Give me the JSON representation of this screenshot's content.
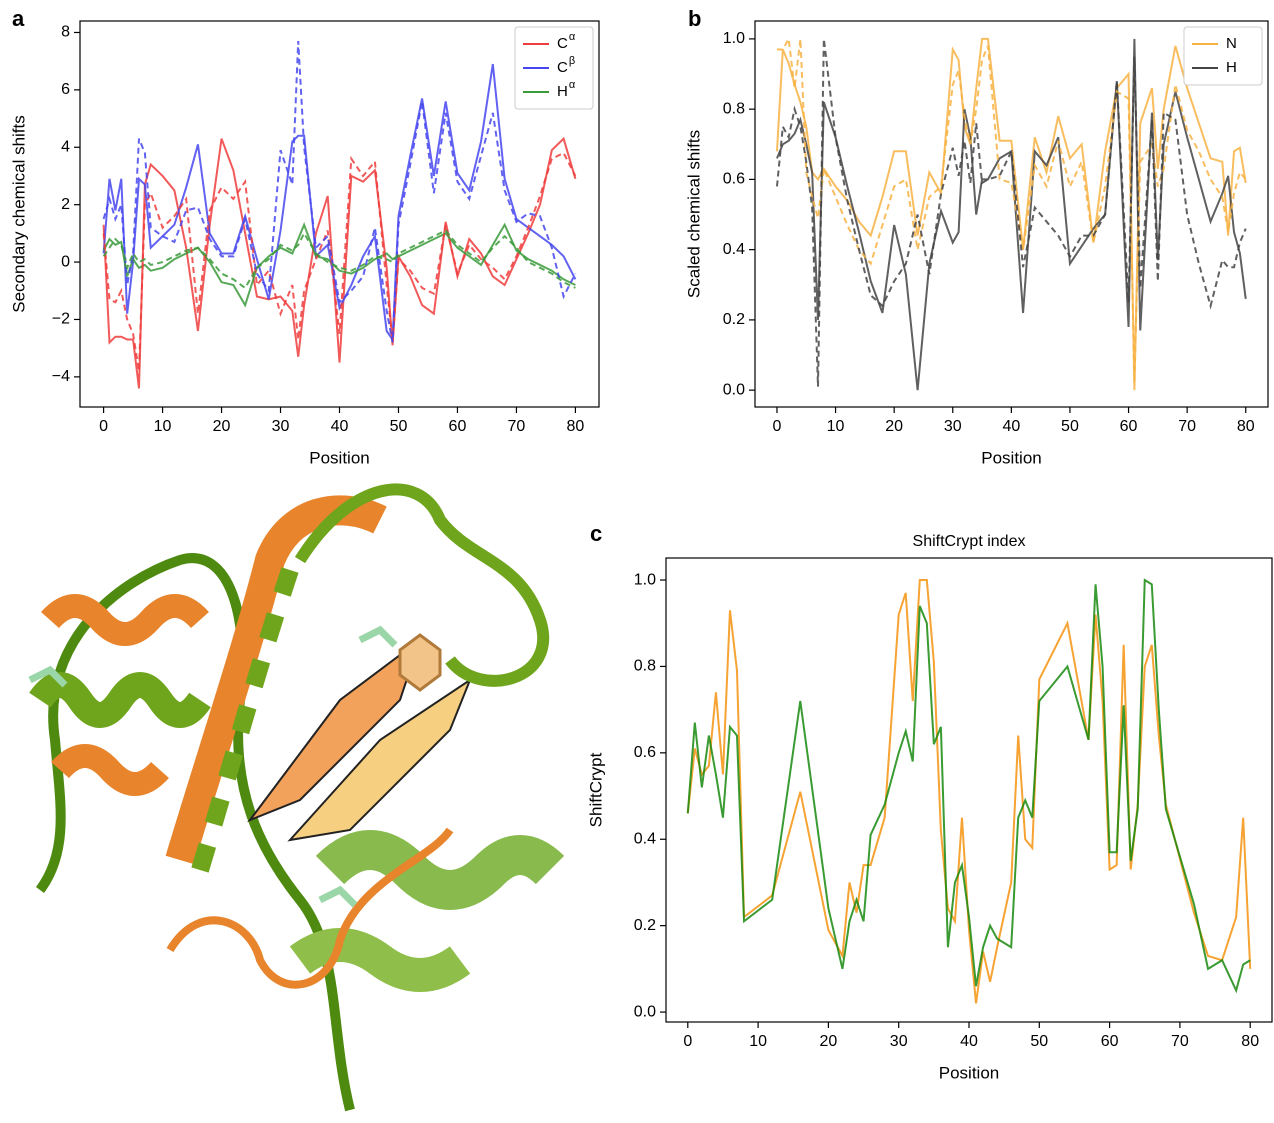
{
  "chart_data": [
    {
      "type": "line",
      "panel": "a",
      "xlabel": "Position",
      "ylabel": "Secondary chemical shifts",
      "legend": "upper right",
      "xlim": [
        -4,
        84
      ],
      "ylim": [
        -5.05,
        8.4
      ],
      "xticks": [
        0,
        10,
        20,
        30,
        40,
        50,
        60,
        70,
        80
      ],
      "yticks": [
        {
          "value": -4,
          "label": "−4"
        },
        {
          "value": -2,
          "label": "−2"
        },
        0,
        2,
        4,
        6,
        8
      ],
      "x": [
        0,
        1,
        2,
        3,
        4,
        5,
        6,
        7,
        8,
        10,
        12,
        14,
        16,
        18,
        20,
        22,
        24,
        26,
        28,
        30,
        32,
        33,
        34,
        36,
        38,
        40,
        42,
        44,
        46,
        48,
        49,
        50,
        52,
        54,
        56,
        58,
        60,
        62,
        64,
        66,
        68,
        70,
        72,
        74,
        76,
        78,
        80
      ],
      "series": [
        {
          "name": "C",
          "name_sup": "α",
          "color": "#f03c3c",
          "values": [
            1.3,
            -2.8,
            -2.6,
            -2.6,
            -2.7,
            -2.7,
            -4.4,
            2.7,
            3.4,
            3.0,
            2.5,
            0.5,
            -2.4,
            1.3,
            4.3,
            3.2,
            1.0,
            -1.2,
            -1.3,
            -1.2,
            -1.7,
            -3.3,
            -1.5,
            1.0,
            2.3,
            -3.5,
            3.0,
            2.8,
            3.2,
            -0.2,
            -2.9,
            0.2,
            -0.5,
            -1.5,
            -1.8,
            1.4,
            -0.5,
            0.8,
            0.3,
            -0.5,
            -0.8,
            0.1,
            1.0,
            2.0,
            3.9,
            4.3,
            2.9
          ]
        },
        {
          "name": "C",
          "name_sup": "β",
          "color": "#4646f0",
          "values": [
            0.3,
            2.9,
            1.8,
            2.9,
            -1.8,
            0,
            2.9,
            2.7,
            0.5,
            0.9,
            1.3,
            2.6,
            4.1,
            1.0,
            0.3,
            0.3,
            1.6,
            0.1,
            -1.3,
            1.1,
            4.2,
            4.4,
            4.4,
            0.2,
            0.6,
            -1.6,
            -0.8,
            0.2,
            0.9,
            -2.4,
            -2.7,
            1.6,
            3.7,
            5.7,
            3.0,
            5.6,
            3.1,
            2.5,
            4.2,
            6.9,
            2.9,
            1.5,
            1.2,
            0.9,
            0.6,
            0.2,
            -0.6
          ]
        },
        {
          "name": "H",
          "name_sup": "α",
          "color": "#3a9a3a",
          "values": [
            0.4,
            0.8,
            0.6,
            0.7,
            -0.5,
            0.1,
            -0.2,
            -0.1,
            -0.3,
            -0.2,
            0.1,
            0.3,
            0.5,
            0,
            -0.7,
            -0.8,
            -1.5,
            -0.2,
            0.2,
            0.5,
            0.3,
            0.8,
            1.3,
            0.2,
            0.1,
            -0.3,
            -0.4,
            -0.2,
            0.1,
            0.3,
            0.1,
            0.2,
            0.4,
            0.6,
            0.8,
            1.0,
            0.5,
            0.2,
            -0.1,
            0.6,
            1.3,
            0.4,
            0.1,
            -0.1,
            -0.3,
            -0.6,
            -0.8
          ]
        },
        {
          "color": "#f03c3c",
          "dash": true,
          "values": [
            1.0,
            -1.3,
            -1.4,
            -1.0,
            -2.0,
            -2.5,
            -3.8,
            2.0,
            2.4,
            1.2,
            1.6,
            2.2,
            -1.8,
            1.8,
            2.6,
            2.2,
            2.8,
            -0.8,
            -0.3,
            -1.8,
            -0.8,
            -2.7,
            -1.0,
            0.1,
            1.1,
            -2.5,
            3.6,
            3.0,
            3.5,
            -0.8,
            -2.8,
            0.1,
            -0.3,
            -0.9,
            -1.1,
            1.3,
            -0.4,
            0.6,
            0.1,
            -0.2,
            -0.6,
            0.2,
            1.2,
            2.3,
            3.6,
            3.8,
            3.0
          ]
        },
        {
          "color": "#4646f0",
          "dash": true,
          "values": [
            1.5,
            2.2,
            1.5,
            2.0,
            -0.8,
            0.3,
            4.3,
            3.8,
            1.2,
            0.9,
            0.7,
            1.8,
            1.9,
            0.8,
            0.2,
            0.2,
            1.5,
            -0.4,
            -1.0,
            3.9,
            2.7,
            7.7,
            4.0,
            0.5,
            0.9,
            -1.4,
            -1.0,
            -0.5,
            1.2,
            -1.7,
            -2.8,
            1.3,
            3.4,
            5.6,
            2.4,
            5.2,
            2.8,
            2.2,
            3.7,
            5.2,
            2.5,
            1.4,
            1.7,
            1.6,
            0.5,
            -1.2,
            -0.4
          ]
        },
        {
          "color": "#3a9a3a",
          "dash": true,
          "values": [
            0.2,
            0.5,
            0.8,
            0.6,
            -0.2,
            0.3,
            0.0,
            0.1,
            -0.1,
            0.0,
            0.2,
            0.4,
            0.5,
            0.1,
            -0.4,
            -0.6,
            -0.9,
            -0.2,
            0.1,
            0.6,
            0.4,
            0.6,
            1.0,
            0.3,
            0.0,
            -0.2,
            -0.3,
            -0.1,
            0.2,
            0.1,
            0.0,
            0.3,
            0.5,
            0.7,
            0.9,
            1.1,
            0.6,
            0.3,
            0.0,
            0.5,
            0.9,
            0.5,
            0.0,
            -0.2,
            -0.4,
            -0.7,
            -0.9
          ]
        }
      ]
    },
    {
      "type": "line",
      "panel": "b",
      "xlabel": "Position",
      "ylabel": "Scaled chemical shifts",
      "legend": "upper right",
      "xlim": [
        -3.75,
        83.8
      ],
      "ylim": [
        -0.048,
        1.051
      ],
      "xticks": [
        0,
        10,
        20,
        30,
        40,
        50,
        60,
        70,
        80
      ],
      "yticks": [
        {
          "value": 0,
          "label": "0.0"
        },
        {
          "value": 0.2,
          "label": "0.2"
        },
        {
          "value": 0.4,
          "label": "0.4"
        },
        {
          "value": 0.6,
          "label": "0.6"
        },
        {
          "value": 0.8,
          "label": "0.8"
        },
        {
          "value": 1,
          "label": "1.0"
        }
      ],
      "x": [
        0,
        1,
        2,
        3,
        4,
        5,
        6,
        7,
        8,
        10,
        12,
        14,
        16,
        18,
        20,
        22,
        24,
        26,
        28,
        30,
        31,
        32,
        33,
        34,
        35,
        36,
        38,
        40,
        42,
        44,
        46,
        48,
        50,
        52,
        54,
        56,
        58,
        60,
        61,
        62,
        64,
        65,
        66,
        68,
        70,
        72,
        74,
        76,
        77,
        78,
        79,
        80
      ],
      "series": [
        {
          "name": "N",
          "color": "#f7b142",
          "values": [
            0.68,
            0.97,
            0.93,
            0.87,
            0.82,
            0.75,
            0.62,
            0.6,
            0.63,
            0.58,
            0.54,
            0.48,
            0.44,
            0.55,
            0.68,
            0.68,
            0.44,
            0.62,
            0.56,
            0.97,
            0.94,
            0.75,
            0.7,
            0.86,
            1.0,
            1.0,
            0.71,
            0.71,
            0.4,
            0.72,
            0.62,
            0.78,
            0.66,
            0.7,
            0.42,
            0.68,
            0.86,
            0.9,
            0.0,
            0.76,
            0.86,
            0.63,
            0.8,
            0.98,
            0.86,
            0.76,
            0.66,
            0.65,
            0.44,
            0.68,
            0.69,
            0.59
          ]
        },
        {
          "name": "H",
          "color": "#444444",
          "values": [
            0.66,
            0.7,
            0.71,
            0.73,
            0.77,
            0.7,
            0.62,
            0.2,
            0.82,
            0.72,
            0.58,
            0.45,
            0.31,
            0.22,
            0.47,
            0.33,
            0.0,
            0.36,
            0.51,
            0.42,
            0.45,
            0.8,
            0.72,
            0.5,
            0.6,
            0.6,
            0.66,
            0.68,
            0.22,
            0.68,
            0.64,
            0.72,
            0.36,
            0.41,
            0.46,
            0.5,
            0.88,
            0.18,
            1.0,
            0.17,
            0.79,
            0.37,
            0.7,
            0.85,
            0.72,
            0.6,
            0.48,
            0.56,
            0.61,
            0.45,
            0.39,
            0.26
          ]
        },
        {
          "color": "#f7b142",
          "dash": true,
          "values": [
            0.97,
            0.97,
            1.0,
            0.86,
            1.0,
            0.62,
            0.55,
            0.49,
            0.63,
            0.55,
            0.47,
            0.4,
            0.36,
            0.47,
            0.58,
            0.6,
            0.4,
            0.55,
            0.58,
            0.87,
            0.91,
            0.78,
            0.7,
            0.8,
            0.94,
            0.98,
            0.6,
            0.59,
            0.4,
            0.64,
            0.58,
            0.71,
            0.58,
            0.65,
            0.42,
            0.58,
            0.85,
            0.83,
            0.02,
            0.65,
            0.7,
            0.58,
            0.63,
            0.87,
            0.74,
            0.68,
            0.6,
            0.55,
            0.45,
            0.56,
            0.62,
            0.6
          ]
        },
        {
          "color": "#444444",
          "dash": true,
          "values": [
            0.58,
            0.75,
            0.72,
            0.8,
            0.75,
            0.65,
            0.52,
            0.01,
            1.0,
            0.72,
            0.54,
            0.4,
            0.27,
            0.24,
            0.31,
            0.36,
            0.5,
            0.33,
            0.56,
            0.69,
            0.61,
            0.71,
            0.59,
            0.76,
            0.59,
            0.6,
            0.61,
            0.68,
            0.35,
            0.52,
            0.48,
            0.44,
            0.38,
            0.44,
            0.44,
            0.5,
            0.88,
            0.25,
            0.95,
            0.29,
            0.77,
            0.31,
            0.79,
            0.77,
            0.5,
            0.36,
            0.24,
            0.37,
            0.35,
            0.35,
            0.42,
            0.46
          ]
        }
      ]
    },
    {
      "type": "line",
      "panel": "c",
      "title": "ShiftCrypt index",
      "xlabel": "Position",
      "ylabel": "ShiftCrypt",
      "xlim": [
        -3.1,
        83.1
      ],
      "ylim": [
        -0.023,
        1.051
      ],
      "xticks": [
        0,
        10,
        20,
        30,
        40,
        50,
        60,
        70,
        80
      ],
      "yticks": [
        {
          "value": 0,
          "label": "0.0"
        },
        {
          "value": 0.2,
          "label": "0.2"
        },
        {
          "value": 0.4,
          "label": "0.4"
        },
        {
          "value": 0.6,
          "label": "0.6"
        },
        {
          "value": 0.8,
          "label": "0.8"
        },
        {
          "value": 1,
          "label": "1.0"
        }
      ],
      "x": [
        0,
        1,
        2,
        3,
        4,
        5,
        6,
        7,
        8,
        12,
        16,
        20,
        22,
        23,
        24,
        25,
        26,
        28,
        30,
        31,
        32,
        33,
        34,
        35,
        36,
        37,
        38,
        39,
        40,
        41,
        42,
        43,
        44,
        46,
        47,
        48,
        49,
        50,
        54,
        57,
        58,
        59,
        60,
        61,
        62,
        63,
        64,
        65,
        66,
        67,
        68,
        72,
        74,
        76,
        78,
        79,
        80
      ],
      "series": [
        {
          "color": "#f5930f",
          "values": [
            0.46,
            0.61,
            0.55,
            0.57,
            0.74,
            0.55,
            0.93,
            0.79,
            0.22,
            0.27,
            0.51,
            0.19,
            0.13,
            0.3,
            0.23,
            0.34,
            0.34,
            0.45,
            0.92,
            0.97,
            0.72,
            1.0,
            1.0,
            0.81,
            0.42,
            0.24,
            0.21,
            0.45,
            0.19,
            0.02,
            0.14,
            0.07,
            0.15,
            0.3,
            0.64,
            0.4,
            0.38,
            0.77,
            0.9,
            0.63,
            0.92,
            0.72,
            0.33,
            0.34,
            0.85,
            0.33,
            0.48,
            0.8,
            0.85,
            0.64,
            0.48,
            0.23,
            0.13,
            0.12,
            0.22,
            0.45,
            0.1
          ]
        },
        {
          "color": "#178a0e",
          "values": [
            0.46,
            0.67,
            0.52,
            0.64,
            0.55,
            0.45,
            0.66,
            0.64,
            0.21,
            0.26,
            0.72,
            0.24,
            0.1,
            0.21,
            0.26,
            0.21,
            0.41,
            0.48,
            0.6,
            0.65,
            0.58,
            0.94,
            0.9,
            0.62,
            0.66,
            0.15,
            0.3,
            0.34,
            0.22,
            0.06,
            0.15,
            0.2,
            0.17,
            0.15,
            0.45,
            0.49,
            0.45,
            0.72,
            0.8,
            0.63,
            0.99,
            0.8,
            0.37,
            0.37,
            0.71,
            0.35,
            0.47,
            1.0,
            0.99,
            0.7,
            0.47,
            0.25,
            0.1,
            0.12,
            0.05,
            0.11,
            0.12
          ]
        }
      ]
    }
  ]
}
